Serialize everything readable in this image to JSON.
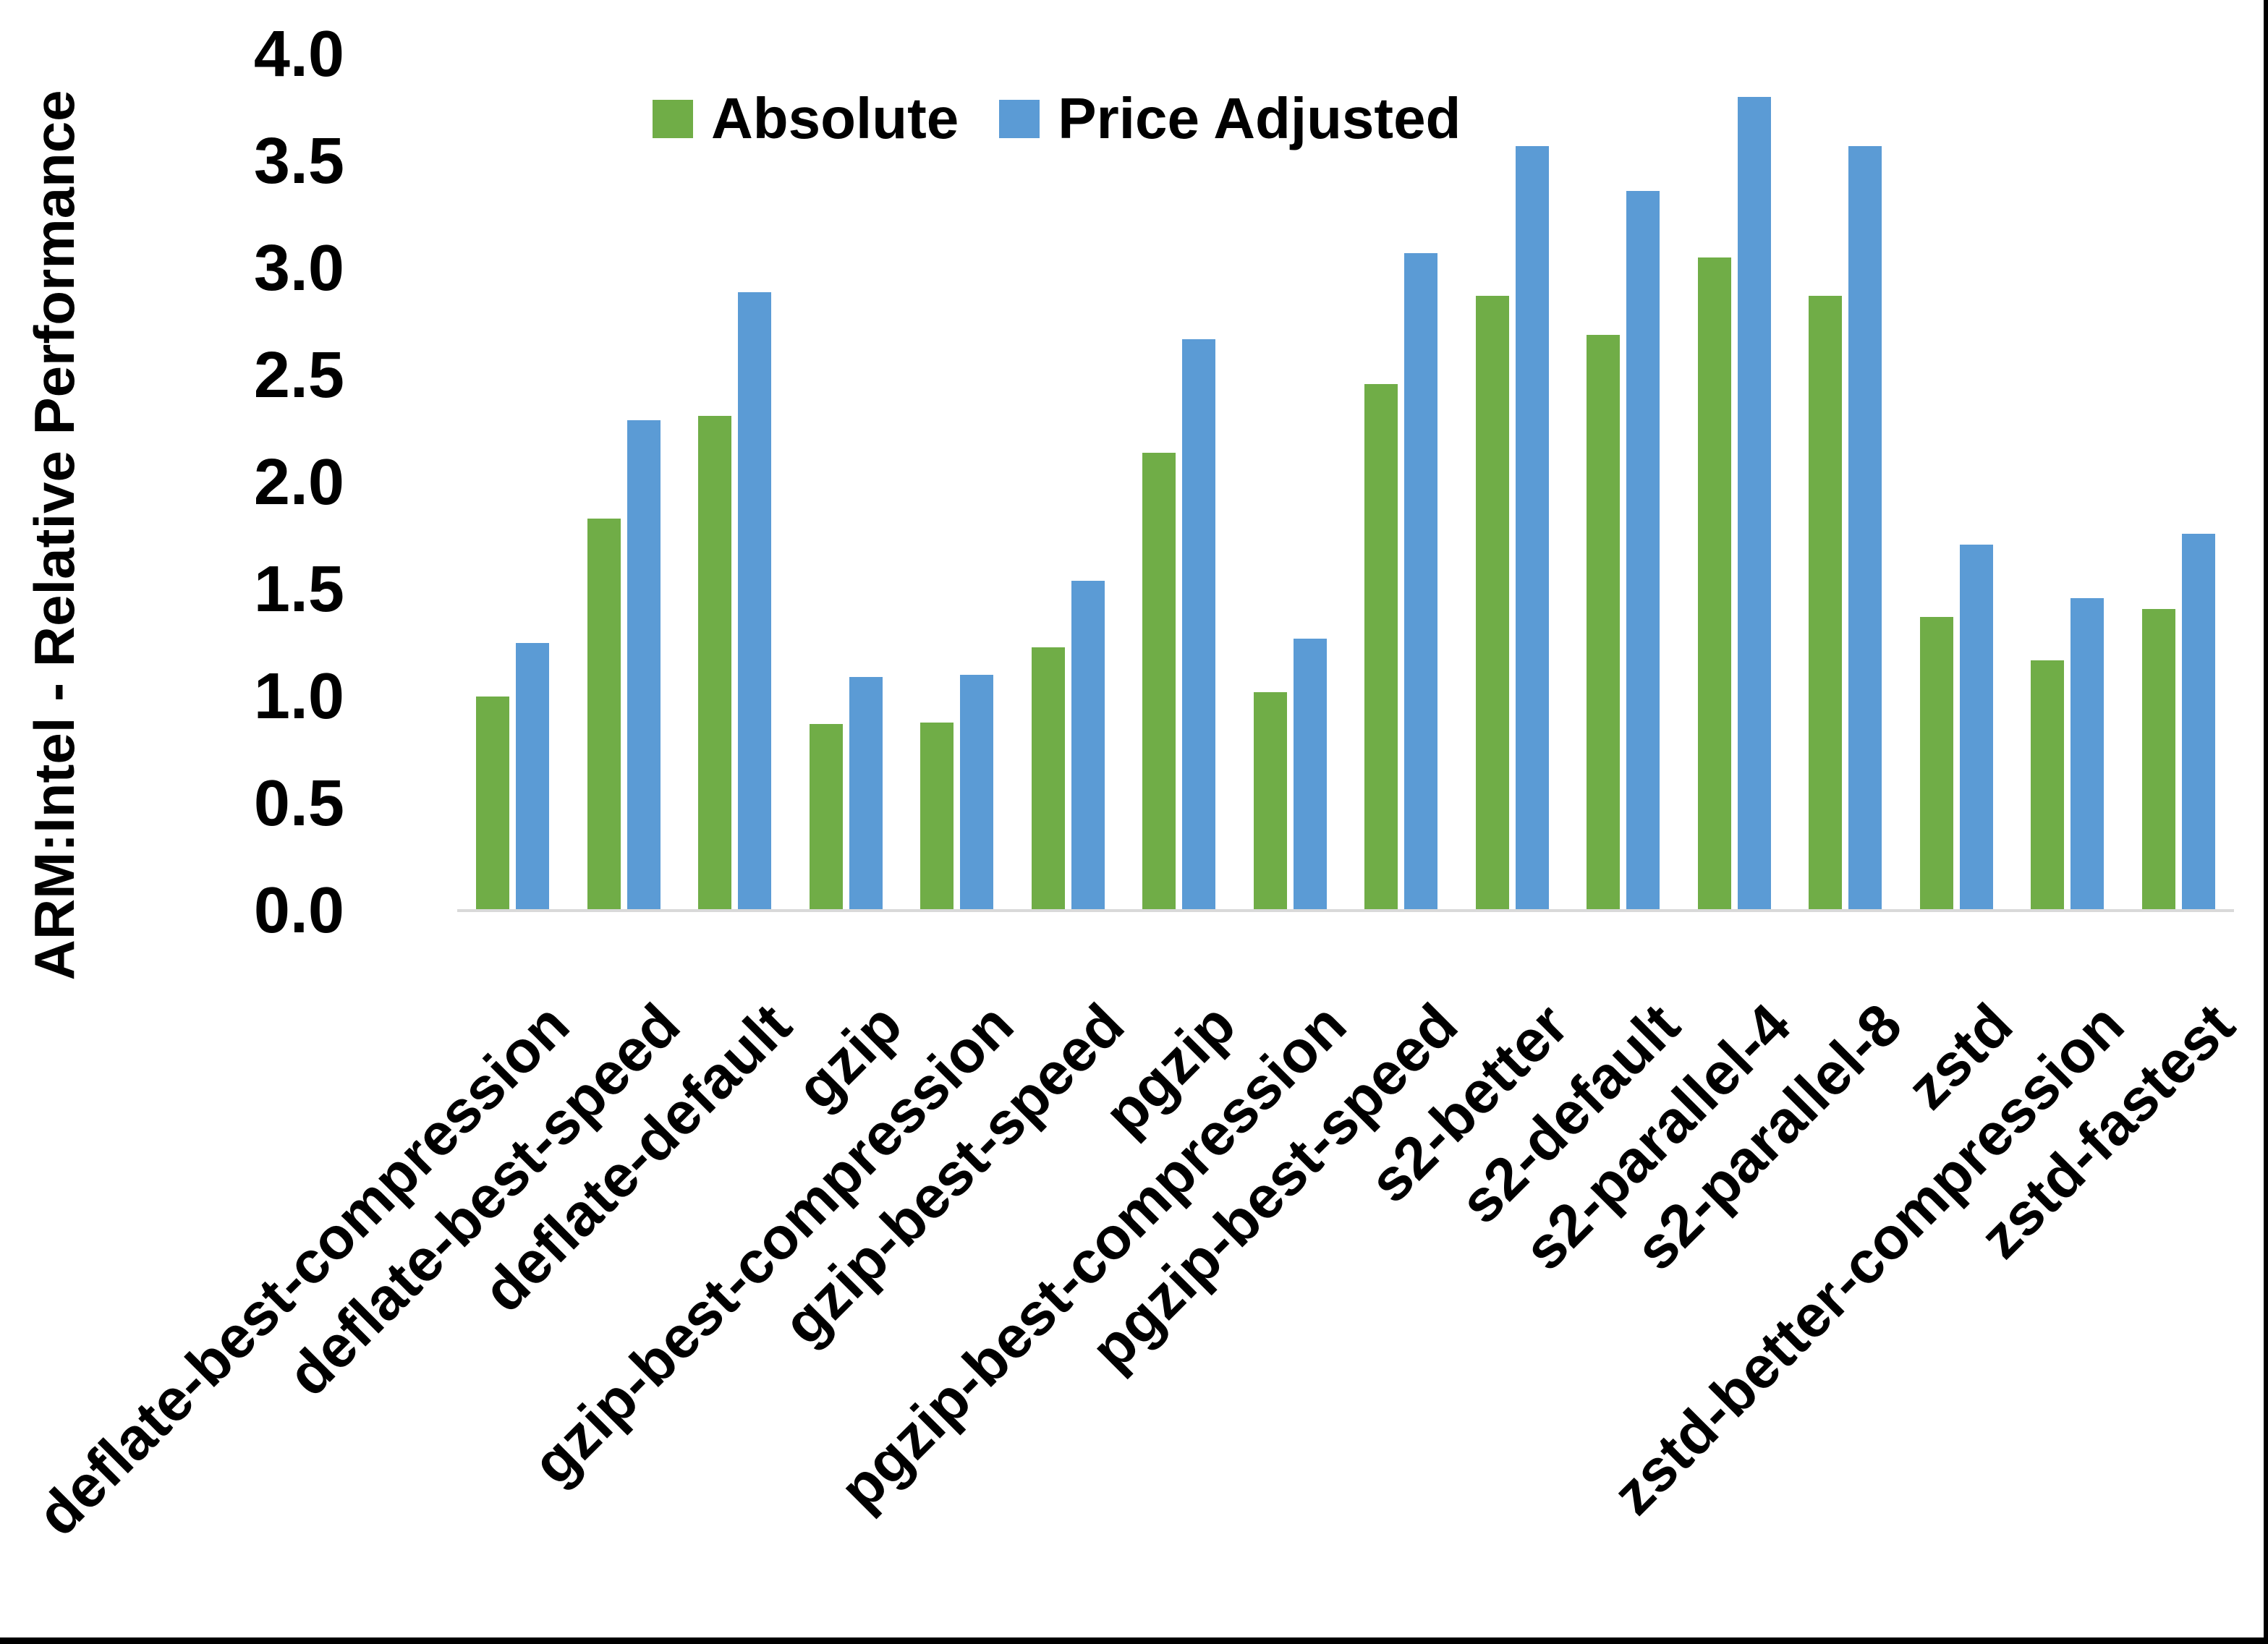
{
  "y_axis": {
    "title": "ARM:Intel - Relative Performance",
    "tick_labels": [
      "4.0",
      "3.5",
      "3.0",
      "2.5",
      "2.0",
      "1.5",
      "1.0",
      "0.5",
      "0.0"
    ]
  },
  "legend": [
    {
      "label": "Absolute",
      "color": "#70AD47"
    },
    {
      "label": "Price Adjusted",
      "color": "#5B9BD5"
    }
  ],
  "colors": {
    "absolute_green": "#70AD47",
    "price_adjusted_blue": "#5B9BD5",
    "axis_line_gray": "#D9D9D9",
    "text_black": "#000000",
    "background": "#FFFFFF",
    "frame_border": "#000000"
  },
  "chart_data": {
    "type": "bar",
    "title": "",
    "xlabel": "",
    "ylabel": "ARM:Intel - Relative Performance",
    "ylim": [
      0,
      4
    ],
    "ytick_step": 0.5,
    "grid": false,
    "legend_position": "top-center",
    "categories": [
      "deflate-best-compression",
      "deflate-best-speed",
      "deflate-default",
      "gzip",
      "gzip-best-compression",
      "gzip-best-speed",
      "pgzip",
      "pgzip-best-compression",
      "pgzip-best-speed",
      "s2-better",
      "s2-default",
      "s2-parallel-4",
      "s2-parallel-8",
      "zstd",
      "zstd-better-compression",
      "zstd-fastest"
    ],
    "series": [
      {
        "name": "Absolute",
        "color": "#70AD47",
        "values": [
          1.0,
          1.83,
          2.31,
          0.87,
          0.88,
          1.23,
          2.14,
          1.02,
          2.46,
          2.87,
          2.69,
          3.05,
          2.87,
          1.37,
          1.17,
          1.41
        ]
      },
      {
        "name": "Price Adjusted",
        "color": "#5B9BD5",
        "values": [
          1.25,
          2.29,
          2.89,
          1.09,
          1.1,
          1.54,
          2.67,
          1.27,
          3.07,
          3.57,
          3.36,
          3.8,
          3.57,
          1.71,
          1.46,
          1.76
        ]
      }
    ]
  }
}
